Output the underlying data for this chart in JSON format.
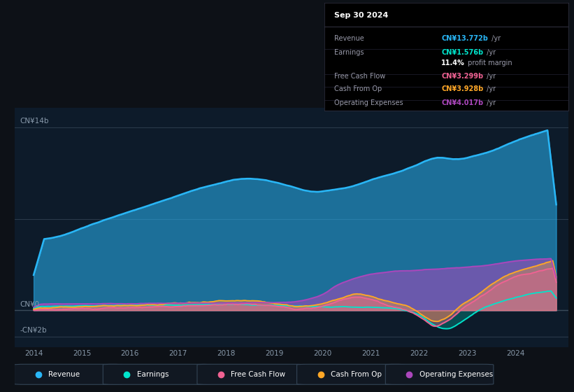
{
  "bg_color": "#0d1117",
  "plot_bg_color": "#0d1b2a",
  "colors": {
    "revenue": "#29b6f6",
    "earnings": "#00e5cc",
    "free_cash_flow": "#f06292",
    "cash_from_op": "#ffa726",
    "operating_expenses": "#ab47bc"
  },
  "legend": [
    {
      "label": "Revenue",
      "color": "#29b6f6"
    },
    {
      "label": "Earnings",
      "color": "#00e5cc"
    },
    {
      "label": "Free Cash Flow",
      "color": "#f06292"
    },
    {
      "label": "Cash From Op",
      "color": "#ffa726"
    },
    {
      "label": "Operating Expenses",
      "color": "#ab47bc"
    }
  ],
  "info_box_title": "Sep 30 2024",
  "info_rows": [
    {
      "label": "Revenue",
      "value": "CN¥13.772b",
      "unit": " /yr",
      "color": "#29b6f6"
    },
    {
      "label": "Earnings",
      "value": "CN¥1.576b",
      "unit": " /yr",
      "color": "#00e5cc"
    },
    {
      "label": "",
      "value": "11.4%",
      "unit": " profit margin",
      "color": "#ffffff"
    },
    {
      "label": "Free Cash Flow",
      "value": "CN¥3.299b",
      "unit": " /yr",
      "color": "#f06292"
    },
    {
      "label": "Cash From Op",
      "value": "CN¥3.928b",
      "unit": " /yr",
      "color": "#ffa726"
    },
    {
      "label": "Operating Expenses",
      "value": "CN¥4.017b",
      "unit": " /yr",
      "color": "#ab47bc"
    }
  ],
  "xlim_start": 2013.6,
  "xlim_end": 2025.1,
  "ylim_min": -2.8,
  "ylim_max": 15.5,
  "xtick_years": [
    2014,
    2015,
    2016,
    2017,
    2018,
    2019,
    2020,
    2021,
    2022,
    2023,
    2024
  ],
  "ylabel_positions": [
    {
      "y": 14,
      "label": "CN¥14b"
    },
    {
      "y": 0,
      "label": "CN¥0"
    },
    {
      "y": -2,
      "label": "-CN¥2b"
    }
  ],
  "hgrid_lines": [
    14,
    7,
    0,
    -2
  ]
}
